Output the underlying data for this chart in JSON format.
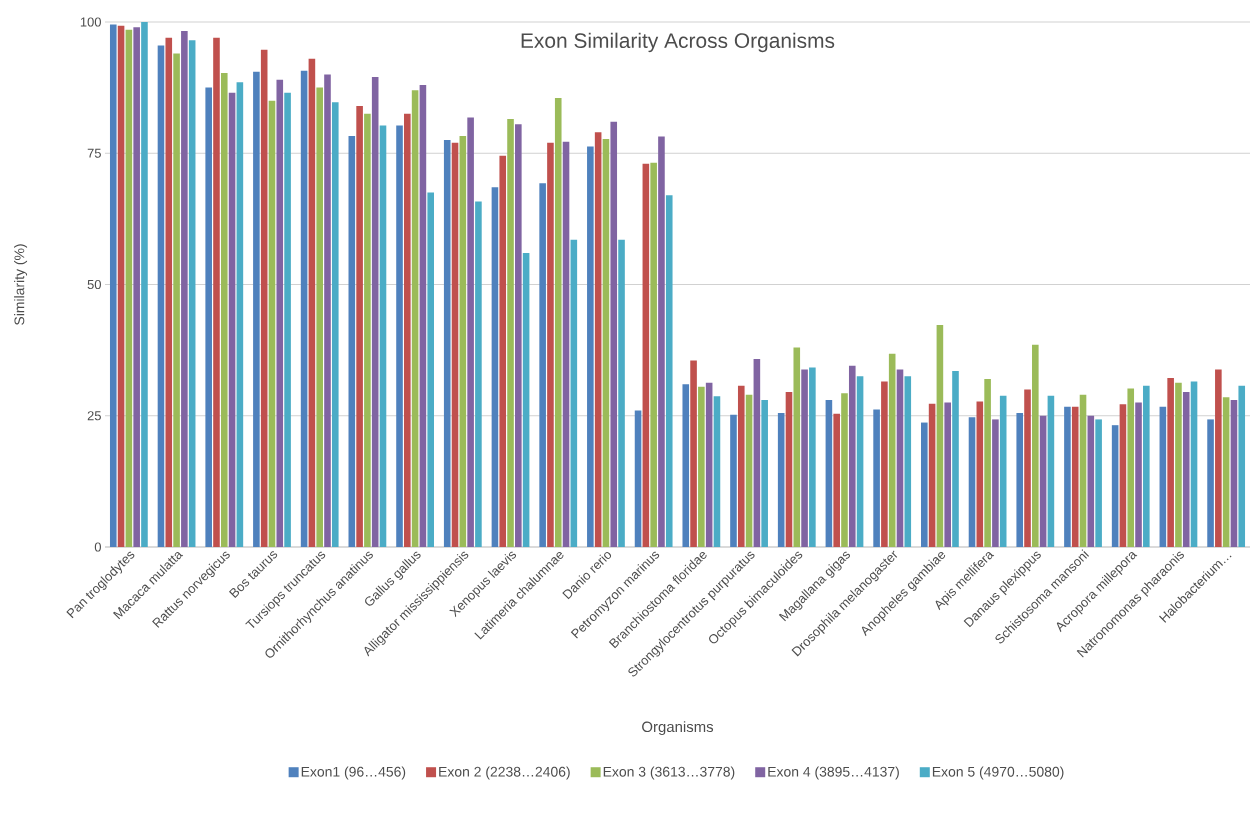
{
  "chart_data": {
    "type": "bar",
    "title": "Exon Similarity Across Organisms",
    "xlabel": "Organisms",
    "ylabel": "Similarity (%)",
    "categories": [
      "Pan troglodytes",
      "Macaca mulatta",
      "Rattus norvegicus",
      "Bos taurus",
      "Tursiops truncatus",
      "Ornithorhynchus anatinus",
      "Gallus gallus",
      "Alligator mississippiensis",
      "Xenopus laevis",
      "Latimeria chalumnae",
      "Danio rerio",
      "Petromyzon marinus",
      "Branchiostoma floridae",
      "Strongylocentrotus purpuratus",
      "Octopus bimaculoides",
      "Magallana gigas",
      "Drosophila melanogaster",
      "Anopheles gambiae",
      "Apis mellifera",
      "Danaus plexippus",
      "Schistosoma mansoni",
      "Acropora millepora",
      "Natronomonas pharaonis",
      "Halobacterium…"
    ],
    "series": [
      {
        "name": "Exon1 (96…456)",
        "color": "#4f81bd",
        "values": [
          99.5,
          95.5,
          87.5,
          90.5,
          90.7,
          78.3,
          80.3,
          77.5,
          68.5,
          69.3,
          76.3,
          26,
          31,
          25.2,
          25.5,
          28,
          26.2,
          23.7,
          24.7,
          25.5,
          26.7,
          23.2,
          26.7,
          24.3
        ]
      },
      {
        "name": "Exon 2 (2238…2406)",
        "color": "#c0504d",
        "values": [
          99.3,
          97,
          97,
          94.7,
          93,
          84,
          82.5,
          77,
          74.5,
          77,
          79,
          73,
          35.5,
          30.7,
          29.5,
          25.4,
          31.5,
          27.3,
          27.7,
          30,
          26.7,
          27.2,
          32.2,
          33.8
        ]
      },
      {
        "name": "Exon 3 (3613…3778)",
        "color": "#9bbb59",
        "values": [
          98.5,
          94,
          90.3,
          85,
          87.5,
          82.5,
          87,
          78.3,
          81.5,
          85.5,
          77.7,
          73.2,
          30.5,
          29,
          38,
          29.3,
          36.8,
          42.3,
          32,
          38.5,
          29,
          30.2,
          31.3,
          28.5
        ]
      },
      {
        "name": "Exon 4 (3895…4137)",
        "color": "#8064a2",
        "values": [
          99,
          98.3,
          86.5,
          89,
          90,
          89.5,
          88,
          81.8,
          80.5,
          77.2,
          81,
          78.2,
          31.3,
          35.8,
          33.8,
          34.5,
          33.8,
          27.5,
          24.3,
          25,
          25,
          27.5,
          29.5,
          28
        ]
      },
      {
        "name": "Exon 5 (4970…5080)",
        "color": "#4bacc6",
        "values": [
          100,
          96.5,
          88.5,
          86.5,
          84.7,
          80.3,
          67.5,
          65.8,
          56,
          58.5,
          58.5,
          67,
          28.7,
          28,
          34.2,
          32.5,
          32.5,
          33.5,
          28.8,
          28.8,
          24.3,
          30.7,
          31.5,
          30.7
        ]
      }
    ],
    "ylim": [
      0,
      100
    ],
    "yticks": [
      0,
      25,
      50,
      75,
      100
    ],
    "grid": "y",
    "legend": "bottom"
  }
}
